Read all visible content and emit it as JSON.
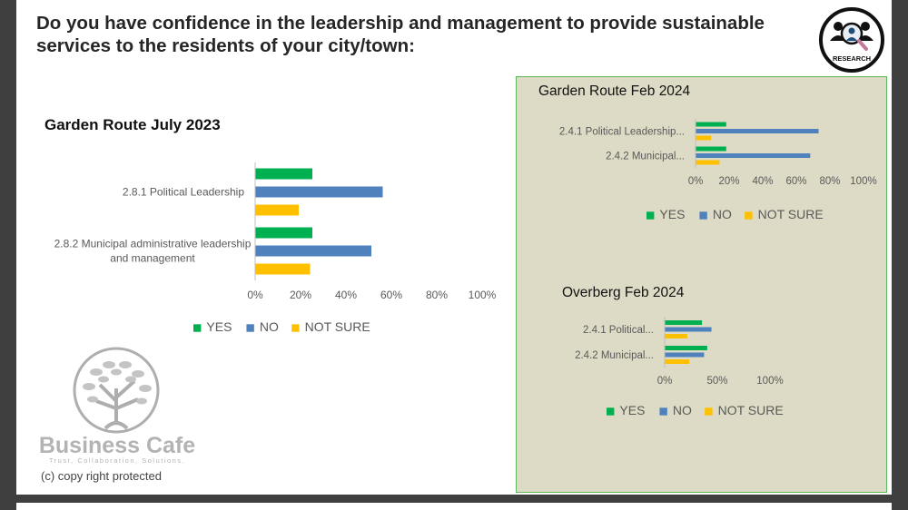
{
  "title": "Do you have confidence in the leadership and management to provide sustainable services to the residents of your city/town:",
  "logo_text": "RESEARCH",
  "brand": {
    "name": "Business Cafe",
    "tagline": "Trust, Collaboration, Solutions.",
    "copyright": "(c) copy right protected"
  },
  "colors": {
    "yes": "#00b050",
    "no": "#4f81bd",
    "not_sure": "#ffc000",
    "panel": "#dddbc5",
    "panel_border": "#5cb85c"
  },
  "chart_data": [
    {
      "type": "bar",
      "orientation": "horizontal",
      "title": "Garden Route July 2023",
      "categories": [
        "2.8.1 Political Leadership",
        "2.8.2 Municipal administrative leadership and management"
      ],
      "series": [
        {
          "name": "YES",
          "values": [
            25,
            25
          ]
        },
        {
          "name": "NO",
          "values": [
            56,
            51
          ]
        },
        {
          "name": "NOT SURE",
          "values": [
            19,
            24
          ]
        }
      ],
      "xlim": [
        0,
        100
      ],
      "ticks": [
        "0%",
        "20%",
        "40%",
        "60%",
        "80%",
        "100%"
      ],
      "legend": "bottom"
    },
    {
      "type": "bar",
      "orientation": "horizontal",
      "title": "Garden Route Feb 2024",
      "categories": [
        "2.4.1 Political Leadership...",
        "2.4.2 Municipal..."
      ],
      "series": [
        {
          "name": "YES",
          "values": [
            18,
            18
          ]
        },
        {
          "name": "NO",
          "values": [
            73,
            68
          ]
        },
        {
          "name": "NOT SURE",
          "values": [
            9,
            14
          ]
        }
      ],
      "xlim": [
        0,
        100
      ],
      "ticks": [
        "0%",
        "20%",
        "40%",
        "60%",
        "80%",
        "100%"
      ],
      "legend": "bottom"
    },
    {
      "type": "bar",
      "orientation": "horizontal",
      "title": "Overberg Feb 2024",
      "categories": [
        "2.4.1 Political...",
        "2.4.2 Municipal..."
      ],
      "series": [
        {
          "name": "YES",
          "values": [
            35,
            40
          ]
        },
        {
          "name": "NO",
          "values": [
            44,
            37
          ]
        },
        {
          "name": "NOT SURE",
          "values": [
            21,
            23
          ]
        }
      ],
      "xlim": [
        0,
        100
      ],
      "ticks": [
        "0%",
        "50%",
        "100%"
      ],
      "legend": "bottom"
    }
  ]
}
